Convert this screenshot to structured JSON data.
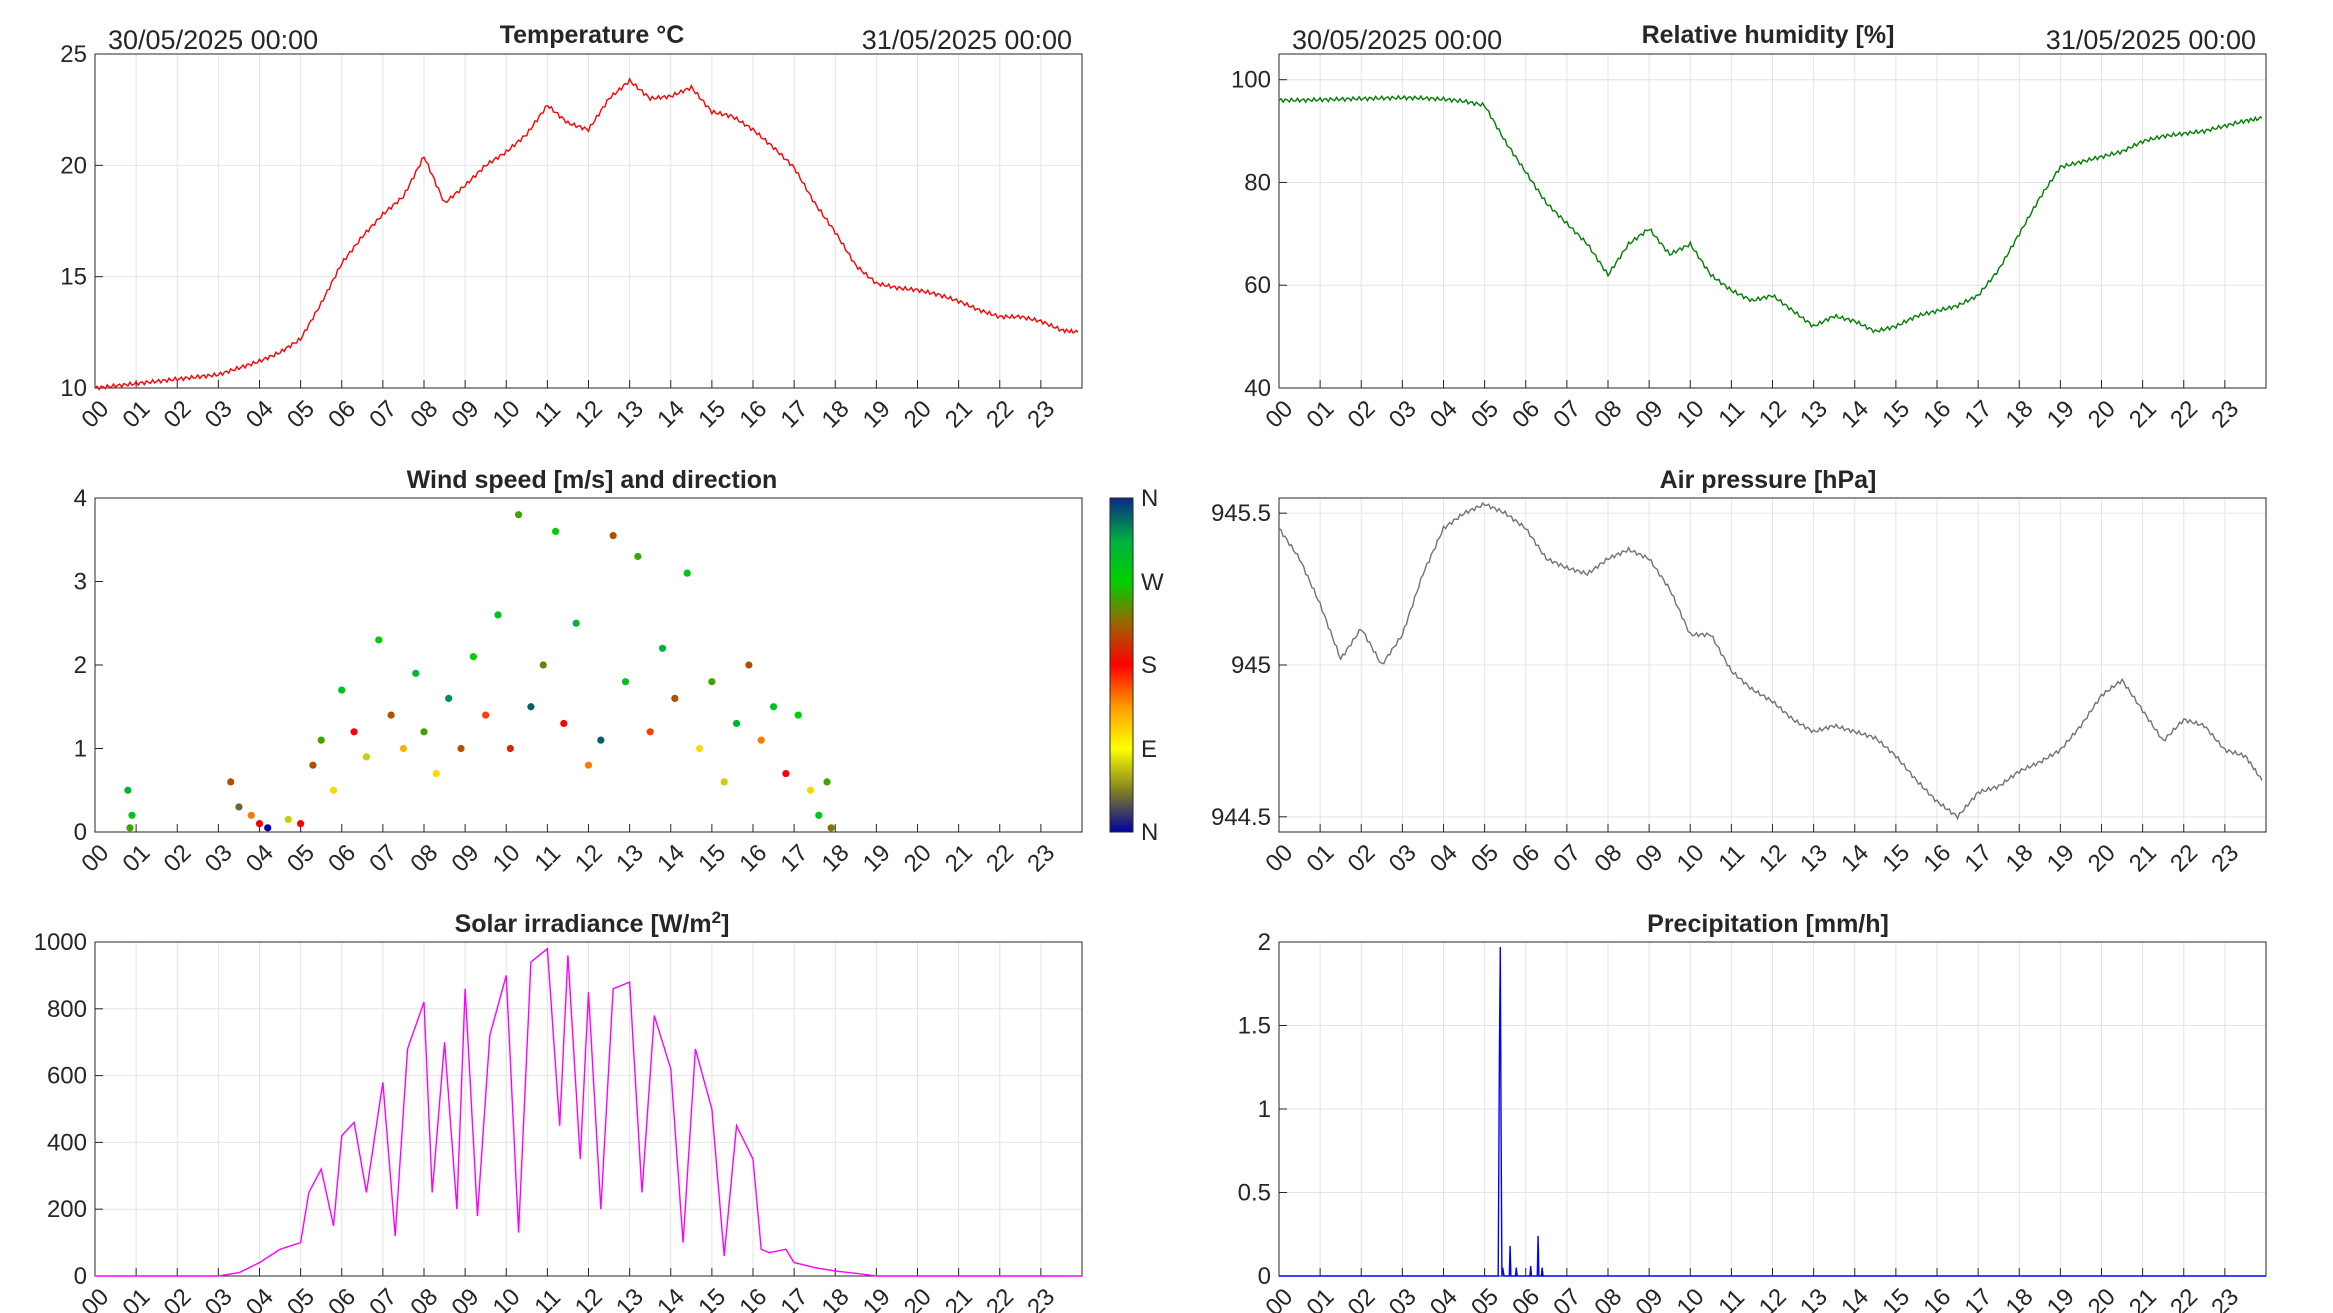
{
  "x_ticks": [
    "00",
    "01",
    "02",
    "03",
    "04",
    "05",
    "06",
    "07",
    "08",
    "09",
    "10",
    "11",
    "12",
    "13",
    "14",
    "15",
    "16",
    "17",
    "18",
    "19",
    "20",
    "21",
    "22",
    "23"
  ],
  "date_start": "30/05/2025 00:00",
  "date_end": "31/05/2025 00:00",
  "chart_data": [
    {
      "id": "temperature",
      "type": "line",
      "title": "Temperature °C",
      "color": "#ff0000",
      "xlim": [
        0,
        24
      ],
      "ylim": [
        10,
        25
      ],
      "yticks": [
        "10",
        "15",
        "20",
        "25"
      ],
      "grid": true,
      "x_hours": [
        0,
        0.5,
        1,
        1.5,
        2,
        2.5,
        3,
        3.5,
        4,
        4.5,
        5,
        5.5,
        6,
        6.5,
        7,
        7.5,
        8,
        8.5,
        9,
        9.5,
        10,
        10.5,
        11,
        11.5,
        12,
        12.5,
        13,
        13.5,
        14,
        14.5,
        15,
        15.5,
        16,
        16.5,
        17,
        17.5,
        18,
        18.5,
        19,
        19.5,
        20,
        20.5,
        21,
        21.5,
        22,
        22.5,
        23,
        23.5,
        23.9
      ],
      "y": [
        10.0,
        10.1,
        10.2,
        10.3,
        10.4,
        10.5,
        10.6,
        10.9,
        11.2,
        11.6,
        12.2,
        13.8,
        15.6,
        16.8,
        17.8,
        18.6,
        20.4,
        18.3,
        19.1,
        20.0,
        20.6,
        21.4,
        22.7,
        21.9,
        21.6,
        23.0,
        23.8,
        23.0,
        23.1,
        23.5,
        22.4,
        22.2,
        21.6,
        20.8,
        19.9,
        18.3,
        17.0,
        15.5,
        14.7,
        14.5,
        14.4,
        14.2,
        13.9,
        13.5,
        13.2,
        13.2,
        13.0,
        12.6,
        12.5
      ]
    },
    {
      "id": "humidity",
      "type": "line",
      "title": "Relative humidity [%]",
      "color": "#007f00",
      "xlim": [
        0,
        24
      ],
      "ylim": [
        40,
        105
      ],
      "yticks": [
        "40",
        "60",
        "80",
        "100"
      ],
      "grid": true,
      "x_hours": [
        0,
        0.5,
        1,
        1.5,
        2,
        2.5,
        3,
        3.5,
        4,
        4.5,
        5,
        5.5,
        6,
        6.5,
        7,
        7.5,
        8,
        8.5,
        9,
        9.5,
        10,
        10.5,
        11,
        11.5,
        12,
        12.5,
        13,
        13.5,
        14,
        14.5,
        15,
        15.5,
        16,
        16.5,
        17,
        17.5,
        18,
        18.5,
        19,
        19.5,
        20,
        20.5,
        21,
        21.5,
        22,
        22.5,
        23,
        23.5,
        23.9
      ],
      "y": [
        96,
        96,
        96.1,
        96.2,
        96.3,
        96.4,
        96.5,
        96.4,
        96.2,
        95.8,
        95,
        88,
        82,
        76,
        72,
        68,
        62,
        68,
        71,
        66,
        68,
        62,
        59,
        57,
        58,
        55,
        52,
        54,
        53,
        51,
        52,
        54,
        55,
        56,
        58,
        63,
        70,
        77,
        83,
        84,
        85,
        86,
        88,
        89,
        89.5,
        90,
        91,
        92,
        92.5
      ]
    },
    {
      "id": "wind",
      "type": "scatter",
      "title": "Wind speed [m/s] and direction",
      "xlim": [
        0,
        24
      ],
      "ylim": [
        0,
        4
      ],
      "yticks": [
        "0",
        "1",
        "2",
        "3",
        "4"
      ],
      "grid": false,
      "colorbar_labels": [
        "N",
        "E",
        "S",
        "W",
        "N"
      ],
      "colorbar_colors": [
        "#0000a0",
        "#ffff00",
        "#ff0000",
        "#00d000",
        "#0a2a88"
      ],
      "points": [
        [
          0.8,
          0.5,
          0.85
        ],
        [
          0.9,
          0.2,
          0.8
        ],
        [
          0.85,
          0.05,
          0.7
        ],
        [
          3.3,
          0.6,
          0.6
        ],
        [
          3.5,
          0.3,
          0.1
        ],
        [
          3.8,
          0.2,
          0.4
        ],
        [
          4.0,
          0.1,
          0.5
        ],
        [
          4.2,
          0.05,
          0.0
        ],
        [
          4.7,
          0.15,
          0.2
        ],
        [
          5.0,
          0.1,
          0.5
        ],
        [
          5.3,
          0.8,
          0.6
        ],
        [
          5.5,
          1.1,
          0.7
        ],
        [
          5.8,
          0.5,
          0.3
        ],
        [
          6.0,
          1.7,
          0.8
        ],
        [
          6.3,
          1.2,
          0.5
        ],
        [
          6.6,
          0.9,
          0.2
        ],
        [
          6.9,
          2.3,
          0.75
        ],
        [
          7.2,
          1.4,
          0.6
        ],
        [
          7.5,
          1.0,
          0.35
        ],
        [
          7.8,
          1.9,
          0.85
        ],
        [
          8.0,
          1.2,
          0.7
        ],
        [
          8.3,
          0.7,
          0.3
        ],
        [
          8.6,
          1.6,
          0.9
        ],
        [
          8.9,
          1.0,
          0.6
        ],
        [
          9.2,
          2.1,
          0.75
        ],
        [
          9.5,
          1.4,
          0.45
        ],
        [
          9.8,
          2.6,
          0.8
        ],
        [
          10.1,
          1.0,
          0.55
        ],
        [
          10.3,
          3.8,
          0.7
        ],
        [
          10.6,
          1.5,
          0.95
        ],
        [
          10.9,
          2.0,
          0.65
        ],
        [
          11.2,
          3.6,
          0.75
        ],
        [
          11.4,
          1.3,
          0.5
        ],
        [
          11.7,
          2.5,
          0.85
        ],
        [
          12.0,
          0.8,
          0.4
        ],
        [
          12.3,
          1.1,
          0.95
        ],
        [
          12.6,
          3.55,
          0.6
        ],
        [
          12.9,
          1.8,
          0.8
        ],
        [
          13.2,
          3.3,
          0.7
        ],
        [
          13.5,
          1.2,
          0.45
        ],
        [
          13.8,
          2.2,
          0.85
        ],
        [
          14.1,
          1.6,
          0.6
        ],
        [
          14.4,
          3.1,
          0.8
        ],
        [
          14.7,
          1.0,
          0.3
        ],
        [
          15.0,
          1.8,
          0.7
        ],
        [
          15.3,
          0.6,
          0.2
        ],
        [
          15.6,
          1.3,
          0.85
        ],
        [
          15.9,
          2.0,
          0.6
        ],
        [
          16.2,
          1.1,
          0.4
        ],
        [
          16.5,
          1.5,
          0.8
        ],
        [
          16.8,
          0.7,
          0.5
        ],
        [
          17.1,
          1.4,
          0.75
        ],
        [
          17.4,
          0.5,
          0.3
        ],
        [
          17.6,
          0.2,
          0.8
        ],
        [
          17.8,
          0.6,
          0.7
        ],
        [
          17.9,
          0.05,
          0.65
        ]
      ]
    },
    {
      "id": "pressure",
      "type": "line",
      "title": "Air pressure [hPa]",
      "color": "#737373",
      "xlim": [
        0,
        24
      ],
      "ylim": [
        944.45,
        945.55
      ],
      "yticks": [
        "944.5",
        "945",
        "945.5"
      ],
      "grid": true,
      "x_hours": [
        0,
        0.5,
        1,
        1.5,
        2,
        2.5,
        3,
        3.5,
        4,
        4.5,
        5,
        5.5,
        6,
        6.5,
        7,
        7.5,
        8,
        8.5,
        9,
        9.5,
        10,
        10.5,
        11,
        11.5,
        12,
        12.5,
        13,
        13.5,
        14,
        14.5,
        15,
        15.5,
        16,
        16.5,
        17,
        17.5,
        18,
        18.5,
        19,
        19.5,
        20,
        20.5,
        21,
        21.5,
        22,
        22.5,
        23,
        23.5,
        23.9
      ],
      "y": [
        945.45,
        945.35,
        945.2,
        945.02,
        945.12,
        945.0,
        945.1,
        945.3,
        945.45,
        945.5,
        945.53,
        945.5,
        945.45,
        945.35,
        945.32,
        945.3,
        945.35,
        945.38,
        945.35,
        945.25,
        945.1,
        945.1,
        944.98,
        944.92,
        944.88,
        944.82,
        944.78,
        944.8,
        944.78,
        944.76,
        944.7,
        944.62,
        944.55,
        944.5,
        944.58,
        944.6,
        944.65,
        944.68,
        944.72,
        944.8,
        944.9,
        944.95,
        944.85,
        944.75,
        944.82,
        944.8,
        944.72,
        944.7,
        944.62
      ]
    },
    {
      "id": "solar",
      "type": "line",
      "title": "Solar irradiance [W/m2]",
      "color": "#ff00ff",
      "xlim": [
        0,
        24
      ],
      "ylim": [
        0,
        1000
      ],
      "yticks": [
        "0",
        "200",
        "400",
        "600",
        "800",
        "1000"
      ],
      "grid": true,
      "x_hours": [
        0,
        3,
        3.5,
        4,
        4.5,
        5,
        5.2,
        5.5,
        5.8,
        6,
        6.3,
        6.6,
        7,
        7.3,
        7.6,
        8,
        8.2,
        8.5,
        8.8,
        9,
        9.3,
        9.6,
        10,
        10.3,
        10.6,
        11,
        11.3,
        11.5,
        11.8,
        12,
        12.3,
        12.6,
        13,
        13.3,
        13.6,
        14,
        14.3,
        14.6,
        15,
        15.3,
        15.6,
        16,
        16.2,
        16.4,
        16.8,
        17,
        17.5,
        18,
        18.5,
        19,
        24
      ],
      "y": [
        0,
        0,
        10,
        40,
        80,
        100,
        250,
        320,
        150,
        420,
        460,
        250,
        580,
        120,
        680,
        820,
        250,
        700,
        200,
        860,
        180,
        720,
        900,
        130,
        940,
        980,
        450,
        960,
        350,
        850,
        200,
        860,
        880,
        250,
        780,
        620,
        100,
        680,
        500,
        60,
        450,
        350,
        80,
        70,
        80,
        40,
        25,
        15,
        8,
        0,
        0
      ]
    },
    {
      "id": "precip",
      "type": "line",
      "title": "Precipitation [mm/h]",
      "color": "#0000ff",
      "xlim": [
        0,
        24
      ],
      "ylim": [
        0,
        2
      ],
      "yticks": [
        "0",
        "0.5",
        "1",
        "1.5",
        "2"
      ],
      "grid": true,
      "x_hours": [
        0,
        5.33,
        5.36,
        5.38,
        5.4,
        5.42,
        5.44,
        5.47,
        5.6,
        5.62,
        5.64,
        5.75,
        5.77,
        5.79,
        6.1,
        6.12,
        6.14,
        6.28,
        6.3,
        6.32,
        6.38,
        6.4,
        6.42,
        24
      ],
      "y": [
        0,
        0,
        1.32,
        1.97,
        0.85,
        0.0,
        0.05,
        0,
        0,
        0.18,
        0,
        0,
        0.05,
        0,
        0,
        0.06,
        0,
        0,
        0.24,
        0,
        0,
        0.05,
        0,
        0
      ]
    }
  ]
}
